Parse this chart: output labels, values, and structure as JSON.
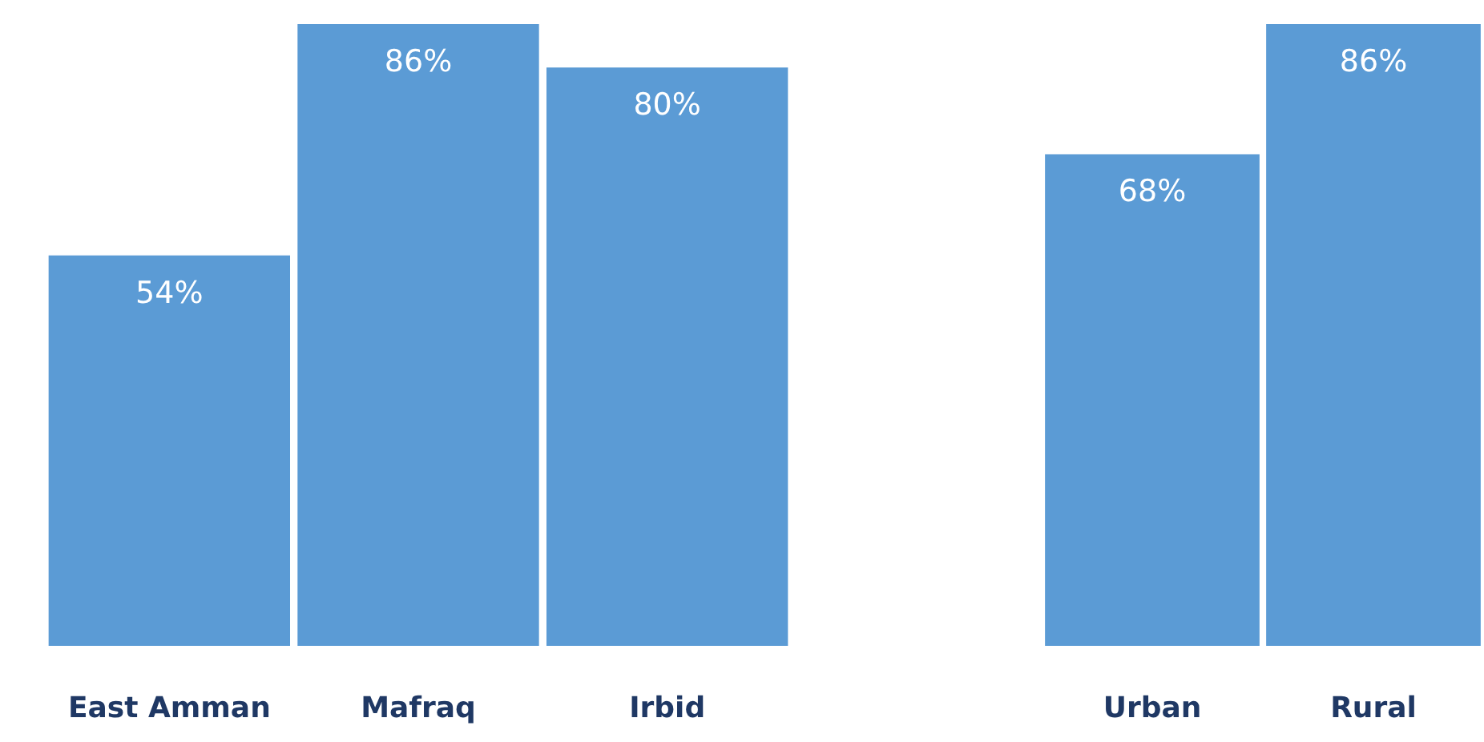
{
  "chart_data": [
    {
      "type": "bar",
      "categories": [
        "East Amman",
        "Mafraq",
        "Irbid"
      ],
      "values": [
        54,
        86,
        80
      ],
      "value_labels": [
        "54%",
        "86%",
        "80%"
      ],
      "color": "#5b9bd5"
    },
    {
      "type": "bar",
      "categories": [
        "Urban",
        "Rural"
      ],
      "values": [
        68,
        86
      ],
      "value_labels": [
        "68%",
        "86%"
      ],
      "color": "#5b9bd5"
    }
  ]
}
